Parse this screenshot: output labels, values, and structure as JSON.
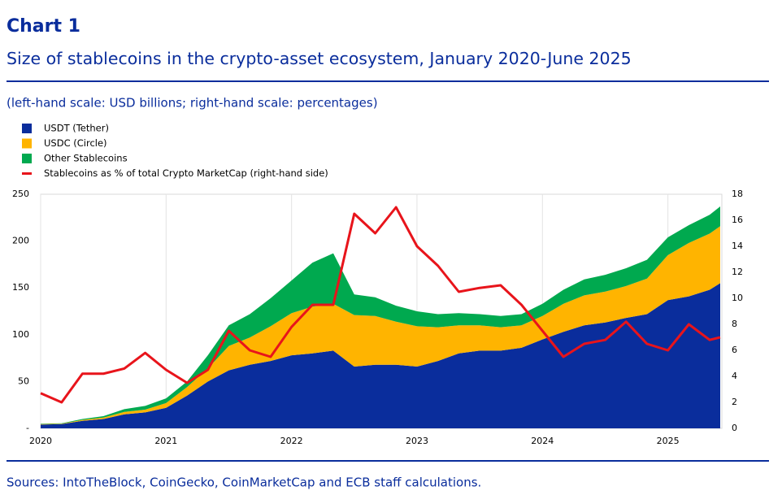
{
  "chart_data": {
    "type": "area",
    "label": "Chart 1",
    "title": "Size of stablecoins in the crypto-asset ecosystem, January 2020-June 2025",
    "note": "(left-hand scale: USD billions; right-hand scale: percentages)",
    "source": "Sources: IntoTheBlock, CoinGecko, CoinMarketCap and ECB staff calculations.",
    "x": [
      2020.0,
      2020.167,
      2020.333,
      2020.5,
      2020.667,
      2020.833,
      2021.0,
      2021.167,
      2021.333,
      2021.5,
      2021.667,
      2021.833,
      2022.0,
      2022.167,
      2022.333,
      2022.5,
      2022.667,
      2022.833,
      2023.0,
      2023.167,
      2023.333,
      2023.5,
      2023.667,
      2023.833,
      2024.0,
      2024.167,
      2024.333,
      2024.5,
      2024.667,
      2024.833,
      2025.0,
      2025.167,
      2025.333,
      2025.417
    ],
    "series": [
      {
        "name": "USDT (Tether)",
        "color": "#0a2d9c",
        "values": [
          4,
          4.5,
          8,
          10,
          15,
          17,
          22,
          35,
          50,
          62,
          68,
          72,
          78,
          80,
          83,
          66,
          68,
          68,
          66,
          72,
          80,
          83,
          83,
          86,
          95,
          103,
          110,
          113,
          118,
          122,
          137,
          141,
          148,
          155
        ]
      },
      {
        "name": "USDC (Circle)",
        "color": "#ffb400",
        "values": [
          0.5,
          0.5,
          1,
          1.5,
          2.5,
          3,
          5,
          9,
          14,
          26,
          29,
          37,
          45,
          50,
          50,
          55,
          52,
          46,
          43,
          36,
          30,
          27,
          25,
          24,
          25,
          30,
          32,
          33,
          34,
          38,
          48,
          57,
          60,
          61
        ]
      },
      {
        "name": "Other Stablecoins",
        "color": "#00a94f",
        "values": [
          0.5,
          0.5,
          1,
          1.5,
          3,
          4,
          5,
          6,
          14,
          22,
          25,
          30,
          35,
          47,
          54,
          22,
          20,
          17,
          16,
          14,
          13,
          12,
          12,
          12,
          13,
          15,
          17,
          18,
          19,
          20,
          19,
          19,
          20,
          21
        ]
      },
      {
        "name": "Stablecoins as % of total Crypto MarketCap (right-hand side)",
        "color": "#e8141b",
        "type": "line",
        "axis": "y2",
        "values": [
          2.7,
          2.0,
          4.2,
          4.2,
          4.6,
          5.8,
          4.5,
          3.5,
          4.5,
          7.5,
          6.0,
          5.5,
          7.8,
          9.5,
          9.5,
          16.5,
          15,
          17,
          14,
          12.5,
          10.5,
          10.8,
          11,
          9.5,
          7.5,
          5.5,
          6.5,
          6.8,
          8.2,
          6.5,
          6.0,
          8.0,
          6.8,
          7.0
        ]
      }
    ],
    "xlim": [
      2020,
      2025.43
    ],
    "xticks": [
      2020,
      2021,
      2022,
      2023,
      2024,
      2025
    ],
    "ylim": [
      0,
      250
    ],
    "yticks": [
      {
        "value": 0,
        "label": "-"
      },
      50,
      100,
      150,
      200,
      250
    ],
    "y2lim": [
      0,
      18
    ],
    "y2ticks": [
      0,
      2,
      4,
      6,
      8,
      10,
      12,
      14,
      16,
      18
    ],
    "grid": "x"
  }
}
